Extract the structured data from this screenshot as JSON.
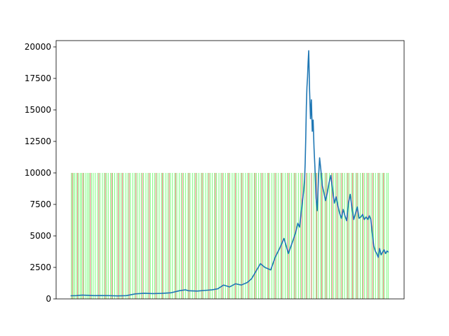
{
  "chart_data": {
    "type": "line",
    "title": "",
    "xlabel": "",
    "ylabel": "",
    "ylim": [
      0,
      20500
    ],
    "xlim": [
      -49,
      1133
    ],
    "yticks": [
      0,
      2500,
      5000,
      7500,
      10000,
      12500,
      15000,
      17500,
      20000
    ],
    "ytick_labels": [
      "0",
      "2500",
      "5000",
      "7500",
      "10000",
      "12500",
      "15000",
      "17500",
      "20000"
    ],
    "show_xticks": false,
    "grid": false,
    "legend": "none",
    "colors": {
      "line": "#1f77b4",
      "signal_green": "#7CFC7C",
      "signal_red": "#F08080",
      "axes": "#000000"
    },
    "signal_level": 10000,
    "series": [
      {
        "x": [
          0,
          20,
          40,
          60,
          80,
          100,
          130,
          160,
          190,
          220,
          250,
          280,
          310,
          340,
          370,
          390,
          400,
          430,
          460,
          480,
          500,
          520,
          540,
          560,
          580,
          600,
          615,
          625,
          635,
          645,
          660,
          680,
          695,
          710,
          725,
          740,
          755,
          765,
          772,
          778,
          783,
          788,
          792,
          795,
          797,
          799,
          801,
          803,
          805,
          807,
          809,
          812,
          815,
          818,
          821,
          824,
          827,
          830,
          834,
          838,
          842,
          846,
          850,
          855,
          860,
          866,
          872,
          878,
          884,
          890,
          896,
          902,
          908,
          914,
          920,
          926,
          932,
          938,
          944,
          950,
          956,
          962,
          968,
          974,
          980,
          986,
          992,
          998,
          1004,
          1010,
          1015,
          1020,
          1025,
          1030,
          1035,
          1040,
          1045,
          1050,
          1055,
          1060,
          1065,
          1070,
          1075,
          1080
        ],
        "y": [
          250,
          260,
          300,
          280,
          260,
          270,
          260,
          240,
          260,
          400,
          450,
          420,
          440,
          480,
          650,
          720,
          650,
          620,
          680,
          720,
          800,
          1100,
          950,
          1200,
          1100,
          1300,
          1600,
          2000,
          2400,
          2800,
          2500,
          2300,
          3300,
          4000,
          4800,
          3600,
          4600,
          5300,
          6000,
          5700,
          6800,
          7800,
          8600,
          9500,
          10800,
          12800,
          15300,
          16800,
          17600,
          18800,
          19700,
          16500,
          14300,
          15800,
          13300,
          14200,
          12000,
          10500,
          8000,
          7000,
          9500,
          11200,
          10300,
          9000,
          8500,
          7800,
          8400,
          9200,
          9800,
          8700,
          7600,
          8100,
          7400,
          6800,
          6400,
          7100,
          6600,
          6200,
          7600,
          8300,
          7200,
          6300,
          6800,
          7300,
          6400,
          6500,
          6700,
          6300,
          6500,
          6300,
          6600,
          6300,
          5200,
          4200,
          3800,
          3600,
          3300,
          4000,
          3500,
          3700,
          3900,
          3600,
          3800,
          3700
        ]
      }
    ],
    "signals": {
      "green_x": [
        3,
        9,
        14,
        20,
        27,
        33,
        38,
        45,
        52,
        58,
        63,
        71,
        77,
        84,
        92,
        100,
        108,
        115,
        122,
        128,
        136,
        143,
        150,
        158,
        166,
        172,
        180,
        188,
        195,
        203,
        211,
        218,
        226,
        233,
        240,
        248,
        256,
        263,
        271,
        279,
        286,
        294,
        301,
        309,
        316,
        324,
        331,
        339,
        346,
        354,
        361,
        369,
        376,
        384,
        391,
        399,
        406,
        414,
        421,
        429,
        436,
        444,
        451,
        459,
        466,
        474,
        481,
        489,
        496,
        504,
        511,
        519,
        526,
        534,
        541,
        549,
        556,
        564,
        571,
        579,
        586,
        594,
        601,
        609,
        616,
        624,
        631,
        639,
        646,
        654,
        661,
        669,
        676,
        684,
        691,
        699,
        706,
        714,
        721,
        729,
        736,
        744,
        751,
        759,
        766,
        774,
        781,
        789,
        796,
        804,
        811,
        819,
        826,
        834,
        841,
        849,
        856,
        864,
        871,
        879,
        886,
        894,
        901,
        909,
        916,
        924,
        931,
        939,
        946,
        954,
        961,
        969,
        976,
        984,
        991,
        999,
        1006,
        1014,
        1021,
        1029,
        1036,
        1044,
        1051,
        1059,
        1066,
        1074,
        1079
      ],
      "red_x": [
        6,
        24,
        42,
        67,
        96,
        118,
        140,
        162,
        176,
        199,
        222,
        244,
        267,
        290,
        312,
        335,
        357,
        380,
        402,
        425,
        447,
        470,
        492,
        515,
        537,
        560,
        582,
        605,
        627,
        650,
        672,
        695,
        717,
        740,
        762,
        785,
        801,
        818,
        836,
        853,
        868,
        889,
        905,
        921,
        942,
        958,
        973,
        994,
        1010,
        1026,
        1047,
        1063
      ]
    }
  }
}
